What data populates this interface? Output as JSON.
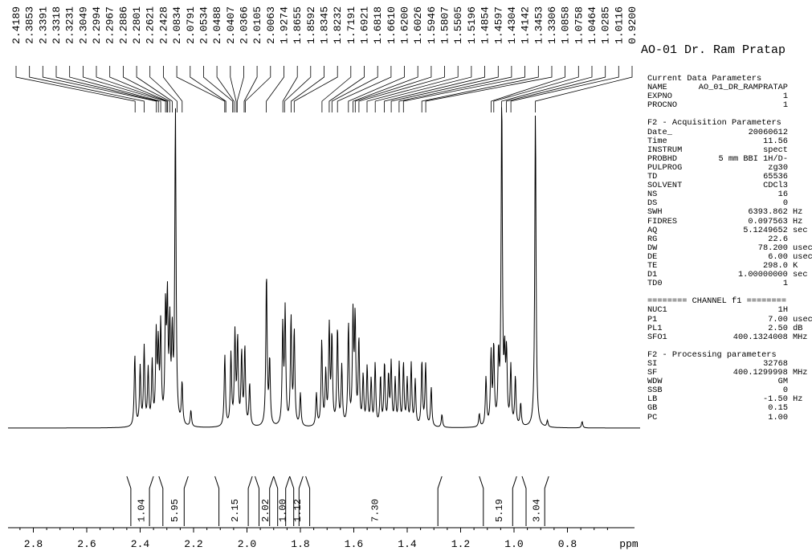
{
  "title": "AO-01 Dr. Ram Pratap",
  "chart_data": {
    "type": "line",
    "xlabel": "ppm",
    "xlim": [
      2.9,
      0.63
    ],
    "x_ticks": [
      2.8,
      2.6,
      2.4,
      2.2,
      2.0,
      1.8,
      1.6,
      1.4,
      1.2,
      1.0,
      0.8
    ],
    "x_tick_labels": [
      "2.8",
      "2.6",
      "2.4",
      "2.2",
      "2.0",
      "1.8",
      "1.6",
      "1.4",
      "1.2",
      "1.0",
      "0.8"
    ],
    "peak_labels": [
      "2.4189",
      "2.3853",
      "2.3391",
      "2.3318",
      "2.3231",
      "2.3049",
      "2.2994",
      "2.2967",
      "2.2886",
      "2.2801",
      "2.2621",
      "2.2428",
      "2.0834",
      "2.0791",
      "2.0534",
      "2.0488",
      "2.0407",
      "2.0366",
      "2.0105",
      "2.0063",
      "1.9274",
      "1.8655",
      "1.8592",
      "1.8345",
      "1.8232",
      "1.7191",
      "1.6921",
      "1.6818",
      "1.6610",
      "1.6200",
      "1.6026",
      "1.5946",
      "1.5807",
      "1.5505",
      "1.5196",
      "1.4854",
      "1.4597",
      "1.4304",
      "1.4142",
      "1.3453",
      "1.3306",
      "1.0858",
      "1.0758",
      "1.0464",
      "1.0285",
      "1.0116",
      "0.9200"
    ],
    "peaks": [
      {
        "ppm": 2.42,
        "h": 0.22
      },
      {
        "ppm": 2.4,
        "h": 0.18
      },
      {
        "ppm": 2.385,
        "h": 0.24
      },
      {
        "ppm": 2.37,
        "h": 0.17
      },
      {
        "ppm": 2.355,
        "h": 0.19
      },
      {
        "ppm": 2.34,
        "h": 0.27
      },
      {
        "ppm": 2.332,
        "h": 0.23
      },
      {
        "ppm": 2.323,
        "h": 0.3
      },
      {
        "ppm": 2.305,
        "h": 0.34
      },
      {
        "ppm": 2.298,
        "h": 0.36
      },
      {
        "ppm": 2.289,
        "h": 0.29
      },
      {
        "ppm": 2.28,
        "h": 0.25
      },
      {
        "ppm": 2.268,
        "h": 1.0
      },
      {
        "ppm": 2.243,
        "h": 0.13
      },
      {
        "ppm": 2.21,
        "h": 0.05
      },
      {
        "ppm": 2.083,
        "h": 0.22
      },
      {
        "ppm": 2.06,
        "h": 0.22
      },
      {
        "ppm": 2.045,
        "h": 0.28
      },
      {
        "ppm": 2.035,
        "h": 0.26
      },
      {
        "ppm": 2.02,
        "h": 0.22
      },
      {
        "ppm": 2.008,
        "h": 0.24
      },
      {
        "ppm": 1.99,
        "h": 0.13
      },
      {
        "ppm": 1.927,
        "h": 0.47
      },
      {
        "ppm": 1.915,
        "h": 0.2
      },
      {
        "ppm": 1.866,
        "h": 0.3
      },
      {
        "ppm": 1.857,
        "h": 0.35
      },
      {
        "ppm": 1.835,
        "h": 0.33
      },
      {
        "ppm": 1.823,
        "h": 0.29
      },
      {
        "ppm": 1.8,
        "h": 0.1
      },
      {
        "ppm": 1.74,
        "h": 0.1
      },
      {
        "ppm": 1.72,
        "h": 0.26
      },
      {
        "ppm": 1.705,
        "h": 0.16
      },
      {
        "ppm": 1.692,
        "h": 0.3
      },
      {
        "ppm": 1.682,
        "h": 0.27
      },
      {
        "ppm": 1.661,
        "h": 0.3
      },
      {
        "ppm": 1.645,
        "h": 0.18
      },
      {
        "ppm": 1.62,
        "h": 0.31
      },
      {
        "ppm": 1.603,
        "h": 0.33
      },
      {
        "ppm": 1.595,
        "h": 0.32
      },
      {
        "ppm": 1.581,
        "h": 0.26
      },
      {
        "ppm": 1.565,
        "h": 0.15
      },
      {
        "ppm": 1.55,
        "h": 0.18
      },
      {
        "ppm": 1.535,
        "h": 0.14
      },
      {
        "ppm": 1.52,
        "h": 0.19
      },
      {
        "ppm": 1.5,
        "h": 0.15
      },
      {
        "ppm": 1.485,
        "h": 0.19
      },
      {
        "ppm": 1.47,
        "h": 0.15
      },
      {
        "ppm": 1.46,
        "h": 0.19
      },
      {
        "ppm": 1.445,
        "h": 0.14
      },
      {
        "ppm": 1.43,
        "h": 0.19
      },
      {
        "ppm": 1.414,
        "h": 0.19
      },
      {
        "ppm": 1.4,
        "h": 0.14
      },
      {
        "ppm": 1.385,
        "h": 0.19
      },
      {
        "ppm": 1.37,
        "h": 0.14
      },
      {
        "ppm": 1.345,
        "h": 0.2
      },
      {
        "ppm": 1.331,
        "h": 0.19
      },
      {
        "ppm": 1.31,
        "h": 0.12
      },
      {
        "ppm": 1.27,
        "h": 0.04
      },
      {
        "ppm": 1.13,
        "h": 0.04
      },
      {
        "ppm": 1.105,
        "h": 0.15
      },
      {
        "ppm": 1.086,
        "h": 0.22
      },
      {
        "ppm": 1.076,
        "h": 0.24
      },
      {
        "ppm": 1.058,
        "h": 0.2
      },
      {
        "ppm": 1.046,
        "h": 1.0
      },
      {
        "ppm": 1.035,
        "h": 0.19
      },
      {
        "ppm": 1.028,
        "h": 0.21
      },
      {
        "ppm": 1.012,
        "h": 0.18
      },
      {
        "ppm": 0.995,
        "h": 0.15
      },
      {
        "ppm": 0.975,
        "h": 0.07
      },
      {
        "ppm": 0.92,
        "h": 1.0
      },
      {
        "ppm": 0.875,
        "h": 0.02
      },
      {
        "ppm": 0.745,
        "h": 0.02
      }
    ],
    "integrals": [
      {
        "from": 2.45,
        "to": 2.35,
        "label": "1.04"
      },
      {
        "from": 2.33,
        "to": 2.22,
        "label": "5.95"
      },
      {
        "from": 2.12,
        "to": 1.98,
        "label": "2.15"
      },
      {
        "from": 1.97,
        "to": 1.9,
        "label": "2.02"
      },
      {
        "from": 1.9,
        "to": 1.84,
        "label": "1.00"
      },
      {
        "from": 1.84,
        "to": 1.79,
        "label": "1.12"
      },
      {
        "from": 1.78,
        "to": 1.27,
        "label": "7.30"
      },
      {
        "from": 1.13,
        "to": 0.99,
        "label": "5.19"
      },
      {
        "from": 0.97,
        "to": 0.87,
        "label": "3.04"
      }
    ]
  },
  "parameters": [
    {
      "heading": "Current Data Parameters",
      "rows": [
        {
          "key": "NAME",
          "value": "AO_01_DR_RAMPRATAP"
        },
        {
          "key": "EXPNO",
          "value": "1"
        },
        {
          "key": "PROCNO",
          "value": "1"
        }
      ]
    },
    {
      "heading": "F2 - Acquisition Parameters",
      "rows": [
        {
          "key": "Date_",
          "value": "20060612"
        },
        {
          "key": "Time",
          "value": "11.56"
        },
        {
          "key": "INSTRUM",
          "value": "spect"
        },
        {
          "key": "PROBHD",
          "value": "5 mm BBI 1H/D-"
        },
        {
          "key": "PULPROG",
          "value": "zg30"
        },
        {
          "key": "TD",
          "value": "65536"
        },
        {
          "key": "SOLVENT",
          "value": "CDCl3"
        },
        {
          "key": "NS",
          "value": "16"
        },
        {
          "key": "DS",
          "value": "0"
        },
        {
          "key": "SWH",
          "value": "6393.862 Hz"
        },
        {
          "key": "FIDRES",
          "value": "0.097563 Hz"
        },
        {
          "key": "AQ",
          "value": "5.1249652 sec"
        },
        {
          "key": "RG",
          "value": "22.6"
        },
        {
          "key": "DW",
          "value": "78.200 usec"
        },
        {
          "key": "DE",
          "value": "6.00 usec"
        },
        {
          "key": "TE",
          "value": "298.0 K"
        },
        {
          "key": "D1",
          "value": "1.00000000 sec"
        },
        {
          "key": "TD0",
          "value": "1"
        }
      ]
    },
    {
      "heading": "======== CHANNEL f1 ========",
      "rows": [
        {
          "key": "NUC1",
          "value": "1H"
        },
        {
          "key": "P1",
          "value": "7.00 usec"
        },
        {
          "key": "PL1",
          "value": "2.50 dB"
        },
        {
          "key": "SFO1",
          "value": "400.1324008 MHz"
        }
      ]
    },
    {
      "heading": "F2 - Processing parameters",
      "rows": [
        {
          "key": "SI",
          "value": "32768"
        },
        {
          "key": "SF",
          "value": "400.1299998 MHz"
        },
        {
          "key": "WDW",
          "value": "GM"
        },
        {
          "key": "SSB",
          "value": "0"
        },
        {
          "key": "LB",
          "value": "-1.50 Hz"
        },
        {
          "key": "GB",
          "value": "0.15"
        },
        {
          "key": "PC",
          "value": "1.00"
        }
      ]
    }
  ]
}
